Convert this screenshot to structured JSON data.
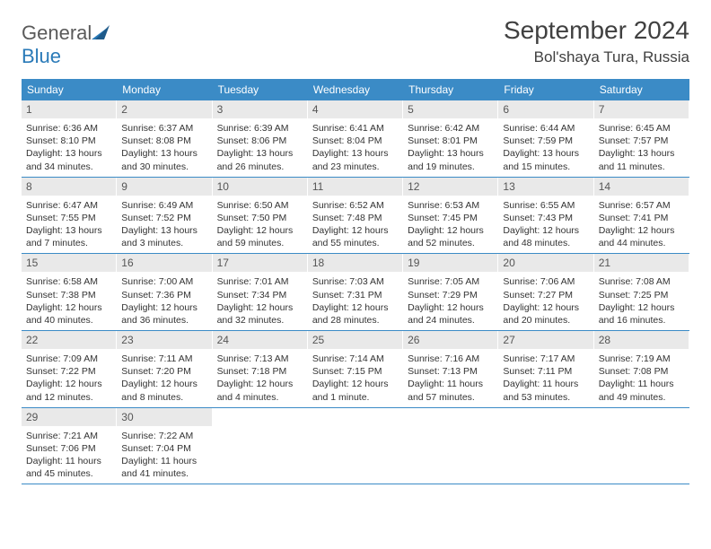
{
  "logo": {
    "text_general": "General",
    "text_blue": "Blue"
  },
  "title": "September 2024",
  "location": "Bol'shaya Tura, Russia",
  "colors": {
    "header_bg": "#3b8bc6",
    "header_text": "#ffffff",
    "daynum_bg": "#e9e9e9",
    "daynum_text": "#555555",
    "body_text": "#333333",
    "page_bg": "#ffffff",
    "title_text": "#404040",
    "logo_gray": "#5a5a5a",
    "logo_blue": "#2a7ab8"
  },
  "weekdays": [
    "Sunday",
    "Monday",
    "Tuesday",
    "Wednesday",
    "Thursday",
    "Friday",
    "Saturday"
  ],
  "weeks": [
    [
      {
        "num": "1",
        "sunrise": "Sunrise: 6:36 AM",
        "sunset": "Sunset: 8:10 PM",
        "day1": "Daylight: 13 hours",
        "day2": "and 34 minutes."
      },
      {
        "num": "2",
        "sunrise": "Sunrise: 6:37 AM",
        "sunset": "Sunset: 8:08 PM",
        "day1": "Daylight: 13 hours",
        "day2": "and 30 minutes."
      },
      {
        "num": "3",
        "sunrise": "Sunrise: 6:39 AM",
        "sunset": "Sunset: 8:06 PM",
        "day1": "Daylight: 13 hours",
        "day2": "and 26 minutes."
      },
      {
        "num": "4",
        "sunrise": "Sunrise: 6:41 AM",
        "sunset": "Sunset: 8:04 PM",
        "day1": "Daylight: 13 hours",
        "day2": "and 23 minutes."
      },
      {
        "num": "5",
        "sunrise": "Sunrise: 6:42 AM",
        "sunset": "Sunset: 8:01 PM",
        "day1": "Daylight: 13 hours",
        "day2": "and 19 minutes."
      },
      {
        "num": "6",
        "sunrise": "Sunrise: 6:44 AM",
        "sunset": "Sunset: 7:59 PM",
        "day1": "Daylight: 13 hours",
        "day2": "and 15 minutes."
      },
      {
        "num": "7",
        "sunrise": "Sunrise: 6:45 AM",
        "sunset": "Sunset: 7:57 PM",
        "day1": "Daylight: 13 hours",
        "day2": "and 11 minutes."
      }
    ],
    [
      {
        "num": "8",
        "sunrise": "Sunrise: 6:47 AM",
        "sunset": "Sunset: 7:55 PM",
        "day1": "Daylight: 13 hours",
        "day2": "and 7 minutes."
      },
      {
        "num": "9",
        "sunrise": "Sunrise: 6:49 AM",
        "sunset": "Sunset: 7:52 PM",
        "day1": "Daylight: 13 hours",
        "day2": "and 3 minutes."
      },
      {
        "num": "10",
        "sunrise": "Sunrise: 6:50 AM",
        "sunset": "Sunset: 7:50 PM",
        "day1": "Daylight: 12 hours",
        "day2": "and 59 minutes."
      },
      {
        "num": "11",
        "sunrise": "Sunrise: 6:52 AM",
        "sunset": "Sunset: 7:48 PM",
        "day1": "Daylight: 12 hours",
        "day2": "and 55 minutes."
      },
      {
        "num": "12",
        "sunrise": "Sunrise: 6:53 AM",
        "sunset": "Sunset: 7:45 PM",
        "day1": "Daylight: 12 hours",
        "day2": "and 52 minutes."
      },
      {
        "num": "13",
        "sunrise": "Sunrise: 6:55 AM",
        "sunset": "Sunset: 7:43 PM",
        "day1": "Daylight: 12 hours",
        "day2": "and 48 minutes."
      },
      {
        "num": "14",
        "sunrise": "Sunrise: 6:57 AM",
        "sunset": "Sunset: 7:41 PM",
        "day1": "Daylight: 12 hours",
        "day2": "and 44 minutes."
      }
    ],
    [
      {
        "num": "15",
        "sunrise": "Sunrise: 6:58 AM",
        "sunset": "Sunset: 7:38 PM",
        "day1": "Daylight: 12 hours",
        "day2": "and 40 minutes."
      },
      {
        "num": "16",
        "sunrise": "Sunrise: 7:00 AM",
        "sunset": "Sunset: 7:36 PM",
        "day1": "Daylight: 12 hours",
        "day2": "and 36 minutes."
      },
      {
        "num": "17",
        "sunrise": "Sunrise: 7:01 AM",
        "sunset": "Sunset: 7:34 PM",
        "day1": "Daylight: 12 hours",
        "day2": "and 32 minutes."
      },
      {
        "num": "18",
        "sunrise": "Sunrise: 7:03 AM",
        "sunset": "Sunset: 7:31 PM",
        "day1": "Daylight: 12 hours",
        "day2": "and 28 minutes."
      },
      {
        "num": "19",
        "sunrise": "Sunrise: 7:05 AM",
        "sunset": "Sunset: 7:29 PM",
        "day1": "Daylight: 12 hours",
        "day2": "and 24 minutes."
      },
      {
        "num": "20",
        "sunrise": "Sunrise: 7:06 AM",
        "sunset": "Sunset: 7:27 PM",
        "day1": "Daylight: 12 hours",
        "day2": "and 20 minutes."
      },
      {
        "num": "21",
        "sunrise": "Sunrise: 7:08 AM",
        "sunset": "Sunset: 7:25 PM",
        "day1": "Daylight: 12 hours",
        "day2": "and 16 minutes."
      }
    ],
    [
      {
        "num": "22",
        "sunrise": "Sunrise: 7:09 AM",
        "sunset": "Sunset: 7:22 PM",
        "day1": "Daylight: 12 hours",
        "day2": "and 12 minutes."
      },
      {
        "num": "23",
        "sunrise": "Sunrise: 7:11 AM",
        "sunset": "Sunset: 7:20 PM",
        "day1": "Daylight: 12 hours",
        "day2": "and 8 minutes."
      },
      {
        "num": "24",
        "sunrise": "Sunrise: 7:13 AM",
        "sunset": "Sunset: 7:18 PM",
        "day1": "Daylight: 12 hours",
        "day2": "and 4 minutes."
      },
      {
        "num": "25",
        "sunrise": "Sunrise: 7:14 AM",
        "sunset": "Sunset: 7:15 PM",
        "day1": "Daylight: 12 hours",
        "day2": "and 1 minute."
      },
      {
        "num": "26",
        "sunrise": "Sunrise: 7:16 AM",
        "sunset": "Sunset: 7:13 PM",
        "day1": "Daylight: 11 hours",
        "day2": "and 57 minutes."
      },
      {
        "num": "27",
        "sunrise": "Sunrise: 7:17 AM",
        "sunset": "Sunset: 7:11 PM",
        "day1": "Daylight: 11 hours",
        "day2": "and 53 minutes."
      },
      {
        "num": "28",
        "sunrise": "Sunrise: 7:19 AM",
        "sunset": "Sunset: 7:08 PM",
        "day1": "Daylight: 11 hours",
        "day2": "and 49 minutes."
      }
    ],
    [
      {
        "num": "29",
        "sunrise": "Sunrise: 7:21 AM",
        "sunset": "Sunset: 7:06 PM",
        "day1": "Daylight: 11 hours",
        "day2": "and 45 minutes."
      },
      {
        "num": "30",
        "sunrise": "Sunrise: 7:22 AM",
        "sunset": "Sunset: 7:04 PM",
        "day1": "Daylight: 11 hours",
        "day2": "and 41 minutes."
      },
      null,
      null,
      null,
      null,
      null
    ]
  ]
}
